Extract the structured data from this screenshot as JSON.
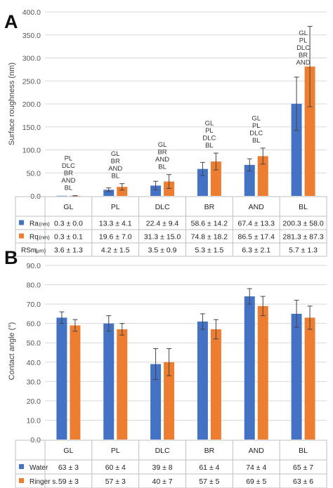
{
  "colors": {
    "blue": "#4472C4",
    "orange": "#ED7D31"
  },
  "chart_data": [
    {
      "type": "bar",
      "panel": "A",
      "ylabel": "Surface roughness (nm)",
      "ylim": [
        0,
        400
      ],
      "yticks": [
        "0.0",
        "50.0",
        "100.0",
        "150.0",
        "200.0",
        "250.0",
        "300.0",
        "350.0",
        "400.0"
      ],
      "categories": [
        "GL",
        "PL",
        "DLC",
        "BR",
        "AND",
        "BL"
      ],
      "series": [
        {
          "name": "Ra",
          "unit": "(nm)",
          "color": "#4472C4",
          "values": [
            0.3,
            13.3,
            22.4,
            58.6,
            67.4,
            200.3
          ],
          "errors": [
            0.0,
            4.1,
            9.4,
            14.2,
            13.3,
            58.0
          ]
        },
        {
          "name": "Rq",
          "unit": "(nm)",
          "color": "#ED7D31",
          "values": [
            0.3,
            19.6,
            31.3,
            74.8,
            86.5,
            281.3
          ],
          "errors": [
            0.1,
            7.0,
            15.0,
            18.2,
            17.4,
            87.3
          ]
        }
      ],
      "significance": [
        [
          "PL",
          "DLC",
          "BR",
          "AND",
          "BL"
        ],
        [
          "GL",
          "BR",
          "AND",
          "BL"
        ],
        [
          "GL",
          "BR",
          "AND",
          "BL"
        ],
        [
          "GL",
          "PL",
          "DLC",
          "BL"
        ],
        [
          "GL",
          "PL",
          "DLC",
          "BL"
        ],
        [
          "GL",
          "PL",
          "DLC",
          "BR",
          "AND"
        ]
      ],
      "table": {
        "rows": [
          {
            "label": "Ra",
            "unit": "(nm)",
            "marker": "#4472C4",
            "cells": [
              "0.3 ± 0.0",
              "13.3 ± 4.1",
              "22.4 ± 9.4",
              "58.6 ± 14.2",
              "67.4 ± 13.3",
              "200.3 ± 58.0"
            ]
          },
          {
            "label": "Rq",
            "unit": "(nm)",
            "marker": "#ED7D31",
            "cells": [
              "0.3 ± 0.1",
              "19.6 ± 7.0",
              "31.3 ± 15.0",
              "74.8 ± 18.2",
              "86.5 ± 17.4",
              "281.3 ± 87.3"
            ]
          },
          {
            "label": "RSm",
            "unit": "(μm)",
            "marker": "",
            "cells": [
              "3.6 ± 1.3",
              "4.2 ± 1.5",
              "3.5 ± 0.9",
              "5.3 ± 1.5",
              "6.3 ± 2.1",
              "5.7 ± 1.3"
            ]
          }
        ]
      }
    },
    {
      "type": "bar",
      "panel": "B",
      "ylabel": "Contact angle (°)",
      "ylim": [
        0,
        90
      ],
      "yticks": [
        "0.0",
        "10.0",
        "20.0",
        "30.0",
        "40.0",
        "50.0",
        "60.0",
        "70.0",
        "80.0",
        "90.0"
      ],
      "categories": [
        "GL",
        "PL",
        "DLC",
        "BR",
        "AND",
        "BL"
      ],
      "series": [
        {
          "name": "Water",
          "color": "#4472C4",
          "values": [
            63,
            60,
            39,
            61,
            74,
            65
          ],
          "errors": [
            3,
            4,
            8,
            4,
            4,
            7
          ]
        },
        {
          "name": "Ringer s.",
          "color": "#ED7D31",
          "values": [
            59,
            57,
            40,
            57,
            69,
            63
          ],
          "errors": [
            3,
            3,
            7,
            5,
            5,
            6
          ]
        }
      ],
      "table": {
        "rows": [
          {
            "label": "Water",
            "unit": "",
            "marker": "#4472C4",
            "cells": [
              "63 ± 3",
              "60 ± 4",
              "39 ± 8",
              "61 ± 4",
              "74 ± 4",
              "65 ± 7"
            ]
          },
          {
            "label": "Ringer s.",
            "unit": "",
            "marker": "#ED7D31",
            "cells": [
              "59 ± 3",
              "57 ± 3",
              "40 ± 7",
              "57 ± 5",
              "69 ± 5",
              "63 ± 6"
            ]
          }
        ]
      }
    }
  ]
}
